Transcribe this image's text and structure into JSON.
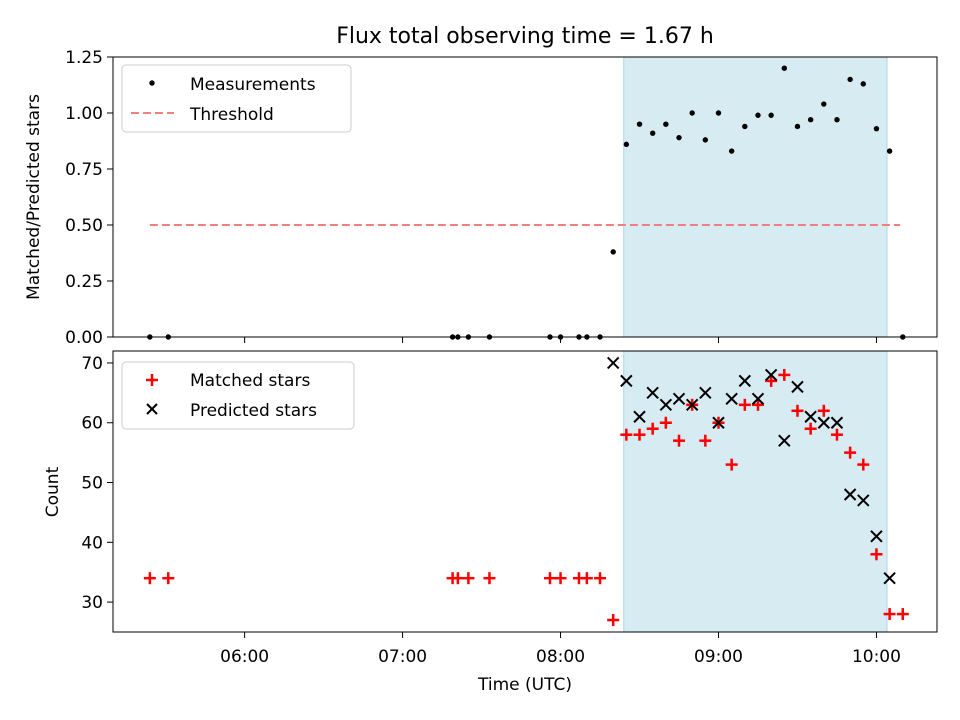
{
  "figure": {
    "title": "Flux total observing time = 1.67 h",
    "xlabel": "Time (UTC)",
    "x_ticks": [
      "06:00",
      "07:00",
      "08:00",
      "09:00",
      "10:00"
    ],
    "shaded_span": [
      "08:24",
      "10:04"
    ],
    "shade_color": "#add8e6"
  },
  "chart_data": [
    {
      "type": "scatter",
      "ylabel": "Matched/Predicted stars",
      "ylim": [
        0,
        1.25
      ],
      "y_ticks": [
        "0.00",
        "0.25",
        "0.50",
        "0.75",
        "1.00",
        "1.25"
      ],
      "legend": {
        "position": "top-left",
        "entries": [
          "Measurements",
          "Threshold"
        ]
      },
      "threshold": {
        "name": "Threshold",
        "value": 0.5,
        "x_range": [
          "05:24",
          "10:09"
        ],
        "color": "#f08080",
        "style": "dashed"
      },
      "series": [
        {
          "name": "Measurements",
          "color": "#000000",
          "marker": "dot",
          "points": [
            [
              "05:24",
              0.0
            ],
            [
              "05:31",
              0.0
            ],
            [
              "07:19",
              0.0
            ],
            [
              "07:21",
              0.0
            ],
            [
              "07:25",
              0.0
            ],
            [
              "07:33",
              0.0
            ],
            [
              "07:56",
              0.0
            ],
            [
              "08:00",
              0.0
            ],
            [
              "08:07",
              0.0
            ],
            [
              "08:10",
              0.0
            ],
            [
              "08:15",
              0.0
            ],
            [
              "08:20",
              0.38
            ],
            [
              "08:25",
              0.86
            ],
            [
              "08:30",
              0.95
            ],
            [
              "08:35",
              0.91
            ],
            [
              "08:40",
              0.95
            ],
            [
              "08:45",
              0.89
            ],
            [
              "08:50",
              1.0
            ],
            [
              "08:55",
              0.88
            ],
            [
              "09:00",
              1.0
            ],
            [
              "09:05",
              0.83
            ],
            [
              "09:10",
              0.94
            ],
            [
              "09:15",
              0.99
            ],
            [
              "09:20",
              0.99
            ],
            [
              "09:25",
              1.2
            ],
            [
              "09:30",
              0.94
            ],
            [
              "09:35",
              0.97
            ],
            [
              "09:40",
              1.04
            ],
            [
              "09:45",
              0.97
            ],
            [
              "09:50",
              1.15
            ],
            [
              "09:55",
              1.13
            ],
            [
              "10:00",
              0.93
            ],
            [
              "10:05",
              0.83
            ],
            [
              "10:10",
              0.0
            ]
          ]
        }
      ]
    },
    {
      "type": "scatter",
      "ylabel": "Count",
      "ylim": [
        25,
        72
      ],
      "y_ticks": [
        "30",
        "40",
        "50",
        "60",
        "70"
      ],
      "legend": {
        "position": "top-left",
        "entries": [
          "Matched stars",
          "Predicted stars"
        ]
      },
      "series": [
        {
          "name": "Matched stars",
          "color": "#ff0000",
          "marker": "plus",
          "points": [
            [
              "05:24",
              34
            ],
            [
              "05:31",
              34
            ],
            [
              "07:19",
              34
            ],
            [
              "07:21",
              34
            ],
            [
              "07:25",
              34
            ],
            [
              "07:33",
              34
            ],
            [
              "07:56",
              34
            ],
            [
              "08:00",
              34
            ],
            [
              "08:07",
              34
            ],
            [
              "08:10",
              34
            ],
            [
              "08:15",
              34
            ],
            [
              "08:20",
              27
            ],
            [
              "08:25",
              58
            ],
            [
              "08:30",
              58
            ],
            [
              "08:35",
              59
            ],
            [
              "08:40",
              60
            ],
            [
              "08:45",
              57
            ],
            [
              "08:50",
              63
            ],
            [
              "08:55",
              57
            ],
            [
              "09:00",
              60
            ],
            [
              "09:05",
              53
            ],
            [
              "09:10",
              63
            ],
            [
              "09:15",
              63
            ],
            [
              "09:20",
              67
            ],
            [
              "09:25",
              68
            ],
            [
              "09:30",
              62
            ],
            [
              "09:35",
              59
            ],
            [
              "09:40",
              62
            ],
            [
              "09:45",
              58
            ],
            [
              "09:50",
              55
            ],
            [
              "09:55",
              53
            ],
            [
              "10:00",
              38
            ],
            [
              "10:05",
              28
            ],
            [
              "10:10",
              28
            ]
          ]
        },
        {
          "name": "Predicted stars",
          "color": "#000000",
          "marker": "x",
          "points": [
            [
              "08:20",
              70
            ],
            [
              "08:25",
              67
            ],
            [
              "08:30",
              61
            ],
            [
              "08:35",
              65
            ],
            [
              "08:40",
              63
            ],
            [
              "08:45",
              64
            ],
            [
              "08:50",
              63
            ],
            [
              "08:55",
              65
            ],
            [
              "09:00",
              60
            ],
            [
              "09:05",
              64
            ],
            [
              "09:10",
              67
            ],
            [
              "09:15",
              64
            ],
            [
              "09:20",
              68
            ],
            [
              "09:25",
              57
            ],
            [
              "09:30",
              66
            ],
            [
              "09:35",
              61
            ],
            [
              "09:40",
              60
            ],
            [
              "09:45",
              60
            ],
            [
              "09:50",
              48
            ],
            [
              "09:55",
              47
            ],
            [
              "10:00",
              41
            ],
            [
              "10:05",
              34
            ]
          ]
        }
      ]
    }
  ]
}
